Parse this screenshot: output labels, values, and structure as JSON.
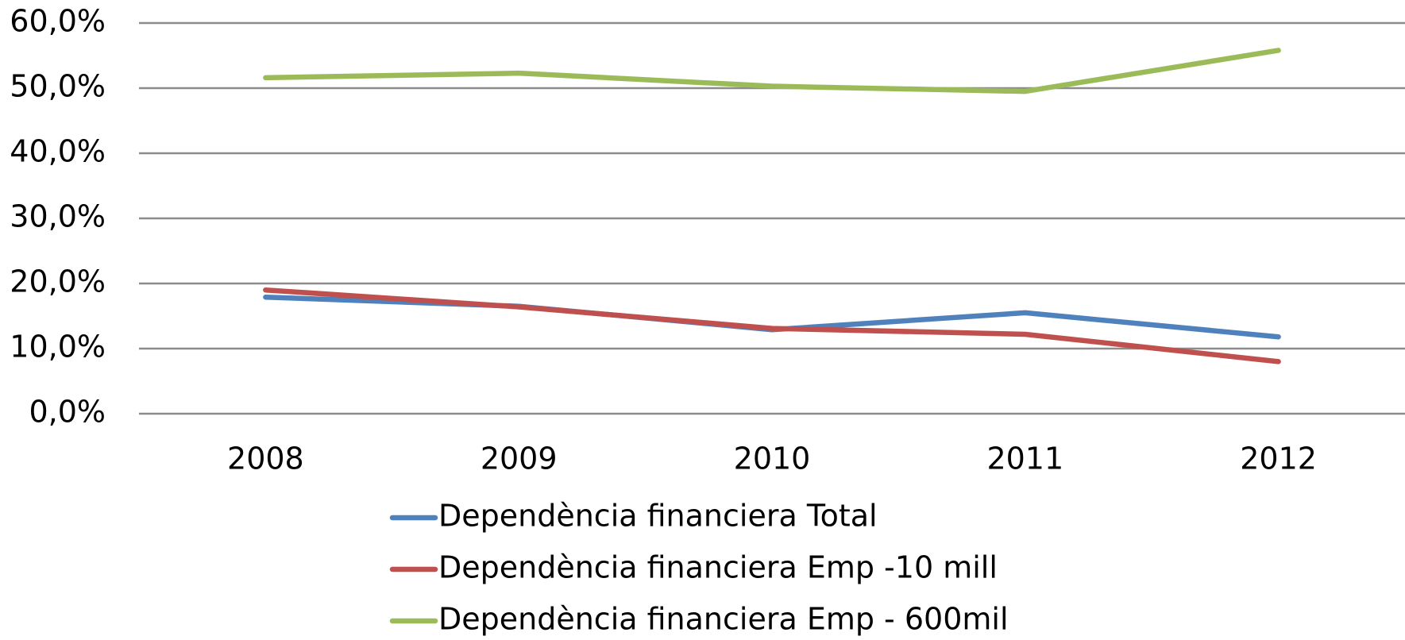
{
  "chart_data": {
    "type": "line",
    "categories": [
      "2008",
      "2009",
      "2010",
      "2011",
      "2012"
    ],
    "series": [
      {
        "name": "Dependència financiera Total",
        "color": "#4f81bd",
        "values": [
          17.9,
          16.5,
          12.9,
          15.5,
          11.8
        ]
      },
      {
        "name": "Dependència financiera Emp -10 mill",
        "color": "#c0504d",
        "values": [
          19.0,
          16.4,
          13.1,
          12.2,
          8.0
        ]
      },
      {
        "name": "Dependència financiera Emp - 600mil",
        "color": "#9bbb59",
        "values": [
          51.6,
          52.3,
          50.3,
          49.5,
          55.8
        ]
      }
    ],
    "ylim": [
      0,
      60
    ],
    "yticks": [
      {
        "value": 0,
        "label": "0,0%"
      },
      {
        "value": 10,
        "label": "10,0%"
      },
      {
        "value": 20,
        "label": "20,0%"
      },
      {
        "value": 30,
        "label": "30,0%"
      },
      {
        "value": 40,
        "label": "40,0%"
      },
      {
        "value": 50,
        "label": "50,0%"
      },
      {
        "value": 60,
        "label": "60,0%"
      }
    ],
    "grid": true,
    "legend": "bottom"
  }
}
